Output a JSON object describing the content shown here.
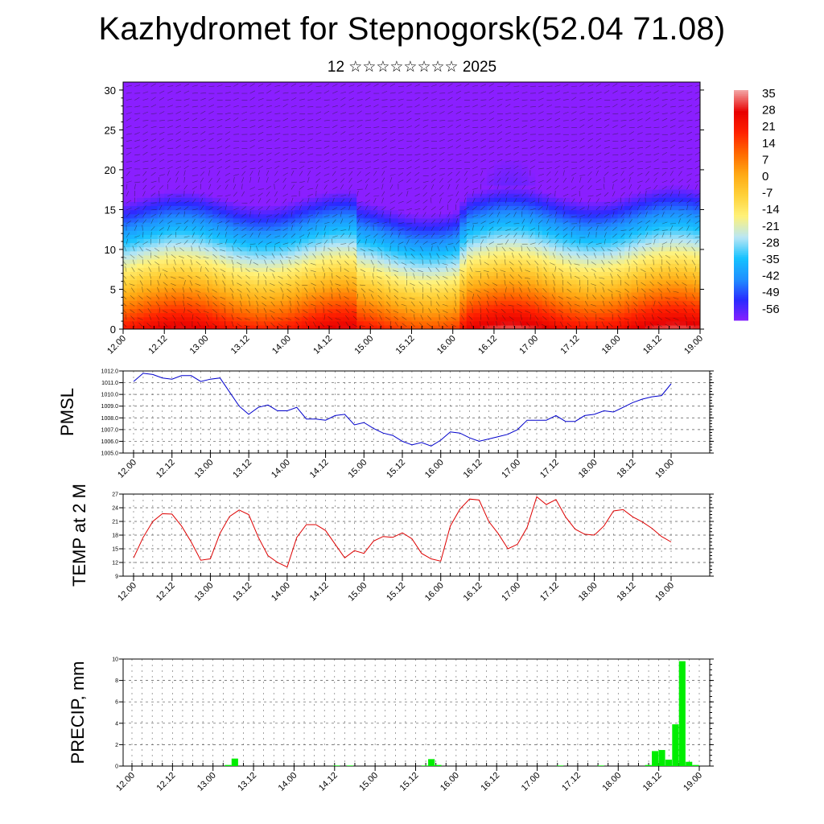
{
  "header": {
    "title": "Kazhydromet for Stepnogorsk(52.04 71.08)",
    "subtitle": "12 ☆☆☆☆☆☆☆☆ 2025"
  },
  "chart_data": [
    {
      "type": "heatmap",
      "name": "temperature-cross-section",
      "x_tick_labels": [
        "12.00",
        "12.12",
        "13.00",
        "13.12",
        "14.00",
        "14.12",
        "15.00",
        "15.12",
        "16.00",
        "16.12",
        "17.00",
        "17.12",
        "18.00",
        "18.12",
        "19.00"
      ],
      "y_ticks": [
        0,
        5,
        10,
        15,
        20,
        25,
        30
      ],
      "ylim": [
        0,
        31
      ],
      "colorbar_labels": [
        "35",
        "28",
        "21",
        "14",
        "7",
        "0",
        "-7",
        "-14",
        "-21",
        "-28",
        "-35",
        "-42",
        "-49",
        "-56"
      ],
      "colorbar_range": [
        -60,
        38
      ],
      "overlay": "wind barbs",
      "colors": [
        "#8a1fff",
        "#2a2aff",
        "#1f8fff",
        "#16c2ff",
        "#b8e6f5",
        "#fff27a",
        "#ffd23a",
        "#ffaa14",
        "#ff6a00",
        "#ff2200",
        "#e80000",
        "#f2a0a0"
      ]
    },
    {
      "type": "line",
      "name": "pmsl",
      "ylabel": "PMSL",
      "x_tick_labels": [
        "12.00",
        "12.12",
        "13.00",
        "13.12",
        "14.00",
        "14.12",
        "15.00",
        "15.12",
        "16.00",
        "16.12",
        "17.00",
        "17.12",
        "18.00",
        "18.12",
        "19.00"
      ],
      "y_ticks": [
        "1005.0",
        "1006.0",
        "1007.0",
        "1008.0",
        "1009.0",
        "1010.0",
        "1011.0",
        "1012.0"
      ],
      "ylim": [
        1005,
        1012
      ],
      "values": [
        1011.1,
        1011.8,
        1011.7,
        1011.4,
        1011.3,
        1011.6,
        1011.6,
        1011.1,
        1011.3,
        1011.4,
        1010.2,
        1009.0,
        1008.3,
        1008.9,
        1009.1,
        1008.6,
        1008.6,
        1008.9,
        1007.9,
        1007.9,
        1007.8,
        1008.2,
        1008.3,
        1007.4,
        1007.6,
        1007.1,
        1006.7,
        1006.5,
        1006.0,
        1005.7,
        1005.9,
        1005.6,
        1006.1,
        1006.8,
        1006.7,
        1006.3,
        1006.0,
        1006.2,
        1006.4,
        1006.6,
        1007.0,
        1007.8,
        1007.8,
        1007.8,
        1008.2,
        1007.7,
        1007.7,
        1008.2,
        1008.3,
        1008.6,
        1008.5,
        1008.9,
        1009.3,
        1009.6,
        1009.8,
        1009.9,
        1010.9
      ],
      "color": "#0000cc"
    },
    {
      "type": "line",
      "name": "temp-2m",
      "ylabel": "TEMP at 2 M",
      "x_tick_labels": [
        "12.00",
        "12.12",
        "13.00",
        "13.12",
        "14.00",
        "14.12",
        "15.00",
        "15.12",
        "16.00",
        "16.12",
        "17.00",
        "17.12",
        "18.00",
        "18.12",
        "19.00"
      ],
      "y_ticks": [
        "9",
        "12",
        "15",
        "18",
        "21",
        "24",
        "27"
      ],
      "ylim": [
        9,
        27
      ],
      "values": [
        13.0,
        17.5,
        21.0,
        22.7,
        22.6,
        20.0,
        16.5,
        12.5,
        12.8,
        18.4,
        22.1,
        23.5,
        22.5,
        17.5,
        13.5,
        12.0,
        11.0,
        17.5,
        20.3,
        20.3,
        19.0,
        16.0,
        13.0,
        14.6,
        14.0,
        16.7,
        17.7,
        17.5,
        18.5,
        17.2,
        14.0,
        12.8,
        12.3,
        20.0,
        23.7,
        25.9,
        25.7,
        21.0,
        18.3,
        15.0,
        16.0,
        19.7,
        26.4,
        24.7,
        25.8,
        22.0,
        19.3,
        18.2,
        18.0,
        20.0,
        23.3,
        23.6,
        22.0,
        20.9,
        19.5,
        17.7,
        16.5
      ],
      "color": "#dd0000"
    },
    {
      "type": "bar",
      "name": "precip",
      "ylabel": "PRECIP, mm",
      "x_tick_labels": [
        "12.00",
        "12.12",
        "13.00",
        "13.12",
        "14.00",
        "14.12",
        "15.00",
        "15.12",
        "16.00",
        "16.12",
        "17.00",
        "17.12",
        "18.00",
        "18.12",
        "19.00"
      ],
      "y_ticks": [
        "0",
        "2",
        "4",
        "6",
        "8",
        "10"
      ],
      "ylim": [
        0,
        10
      ],
      "values": [
        0,
        0,
        0,
        0,
        0,
        0,
        0,
        0,
        0,
        0,
        0,
        0,
        0,
        0,
        0,
        0.1,
        0.7,
        0,
        0,
        0,
        0,
        0,
        0,
        0,
        0,
        0,
        0,
        0,
        0,
        0,
        0,
        0.05,
        0,
        0.05,
        0,
        0,
        0,
        0,
        0,
        0,
        0,
        0,
        0,
        0,
        0.05,
        0.65,
        0.1,
        0,
        0,
        0,
        0,
        0,
        0,
        0,
        0,
        0,
        0,
        0,
        0,
        0,
        0,
        0,
        0,
        0,
        0.05,
        0,
        0,
        0,
        0,
        0,
        0.05,
        0,
        0,
        0,
        0,
        0,
        0,
        0.1,
        1.4,
        1.5,
        0.6,
        3.9,
        9.8,
        0.4,
        0.1
      ],
      "color": "#00ee00"
    }
  ]
}
